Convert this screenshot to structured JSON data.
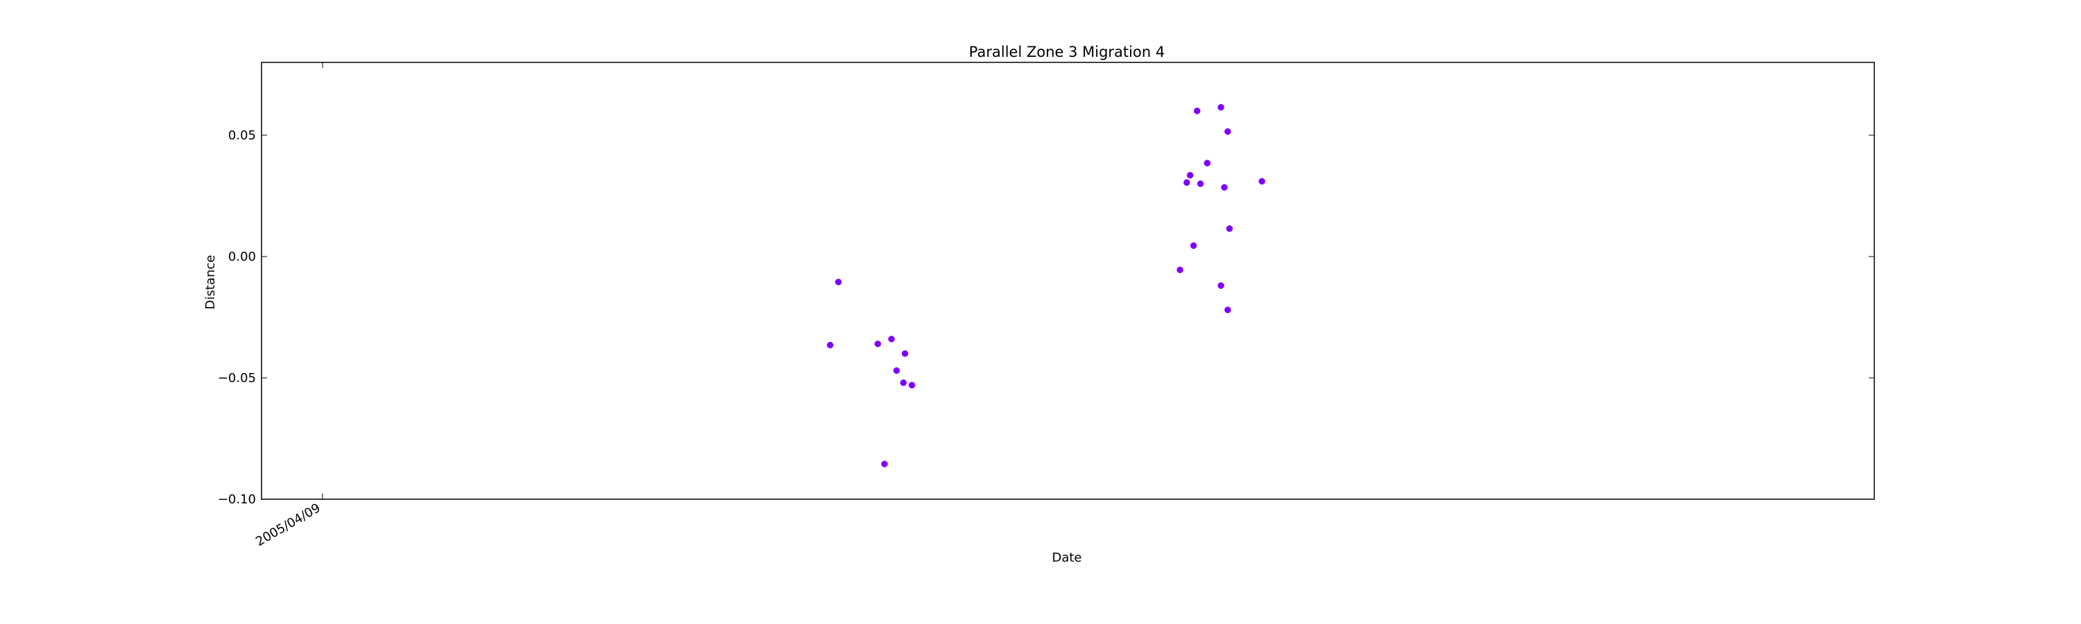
{
  "chart_data": {
    "type": "scatter",
    "title": "Parallel Zone 3 Migration 4",
    "xlabel": "Date",
    "ylabel": "Distance",
    "x_tick_labels": [
      "2005/04/09"
    ],
    "y_tick_labels": [
      "0.05",
      "0.00",
      "−0.05",
      "−0.10"
    ],
    "y_ticks": [
      0.05,
      0.0,
      -0.05,
      -0.1
    ],
    "ylim": [
      -0.1,
      0.08
    ],
    "grid": false,
    "marker_color": "#7f00ff",
    "series": [
      {
        "points": [
          {
            "x": 0.3526,
            "y": -0.0365
          },
          {
            "x": 0.3577,
            "y": -0.0105
          },
          {
            "x": 0.3821,
            "y": -0.036
          },
          {
            "x": 0.3863,
            "y": -0.0855
          },
          {
            "x": 0.3906,
            "y": -0.034
          },
          {
            "x": 0.3938,
            "y": -0.047
          },
          {
            "x": 0.398,
            "y": -0.052
          },
          {
            "x": 0.399,
            "y": -0.04
          },
          {
            "x": 0.4033,
            "y": -0.053
          },
          {
            "x": 0.5695,
            "y": -0.0055
          },
          {
            "x": 0.5737,
            "y": 0.0305
          },
          {
            "x": 0.5758,
            "y": 0.0335
          },
          {
            "x": 0.5779,
            "y": 0.0045
          },
          {
            "x": 0.5801,
            "y": 0.06
          },
          {
            "x": 0.5822,
            "y": 0.03
          },
          {
            "x": 0.5864,
            "y": 0.0385
          },
          {
            "x": 0.5949,
            "y": 0.0615
          },
          {
            "x": 0.5949,
            "y": -0.012
          },
          {
            "x": 0.597,
            "y": 0.0285
          },
          {
            "x": 0.5991,
            "y": 0.0515
          },
          {
            "x": 0.5991,
            "y": -0.022
          },
          {
            "x": 0.6002,
            "y": 0.0115
          },
          {
            "x": 0.6203,
            "y": 0.031
          }
        ]
      }
    ]
  }
}
